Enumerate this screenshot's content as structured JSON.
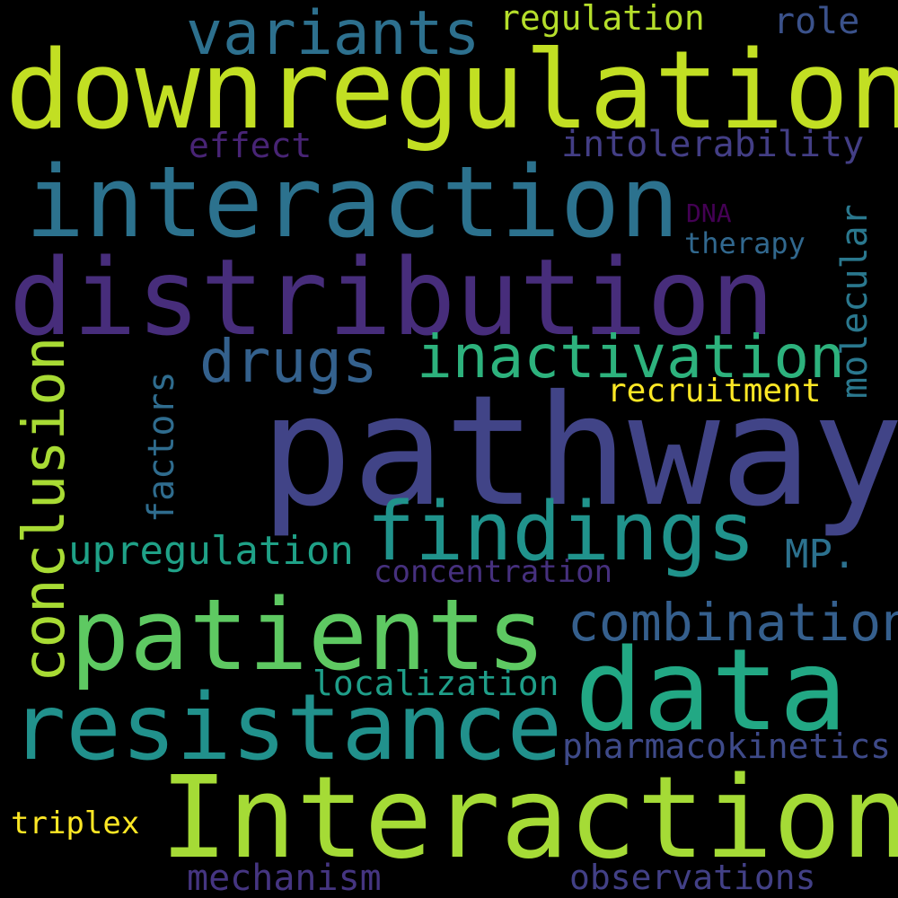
{
  "words": [
    {
      "text": "downregulation",
      "color": "#c2df23"
    },
    {
      "text": "variants",
      "color": "#2d708e"
    },
    {
      "text": "regulation",
      "color": "#b5de2b"
    },
    {
      "text": "role",
      "color": "#3b528b"
    },
    {
      "text": "interaction",
      "color": "#2c728e"
    },
    {
      "text": "effect",
      "color": "#482475"
    },
    {
      "text": "intolerability",
      "color": "#433e85"
    },
    {
      "text": "DNA",
      "color": "#440154"
    },
    {
      "text": "therapy",
      "color": "#31688e"
    },
    {
      "text": "distribution",
      "color": "#472d7b"
    },
    {
      "text": "molecular",
      "color": "#2a788e"
    },
    {
      "text": "drugs",
      "color": "#34618d"
    },
    {
      "text": "inactivation",
      "color": "#2db27d"
    },
    {
      "text": "conclusion",
      "color": "#a8db34"
    },
    {
      "text": "factors",
      "color": "#2f6c8e"
    },
    {
      "text": "recruitment",
      "color": "#fde725"
    },
    {
      "text": "pathway",
      "color": "#414487"
    },
    {
      "text": "findings",
      "color": "#20938c"
    },
    {
      "text": "upregulation",
      "color": "#1fa187"
    },
    {
      "text": "MP.",
      "color": "#2c718e"
    },
    {
      "text": "concentration",
      "color": "#46307e"
    },
    {
      "text": "patients",
      "color": "#5ec962"
    },
    {
      "text": "combination",
      "color": "#355f8d"
    },
    {
      "text": "data",
      "color": "#22a884"
    },
    {
      "text": "localization",
      "color": "#1f9e89"
    },
    {
      "text": "resistance",
      "color": "#21918c"
    },
    {
      "text": "pharmacokinetics",
      "color": "#3e4a89"
    },
    {
      "text": "Interaction",
      "color": "#a5db36"
    },
    {
      "text": "triplex",
      "color": "#fde725"
    },
    {
      "text": "mechanism",
      "color": "#453581"
    },
    {
      "text": "observations",
      "color": "#424086"
    }
  ]
}
